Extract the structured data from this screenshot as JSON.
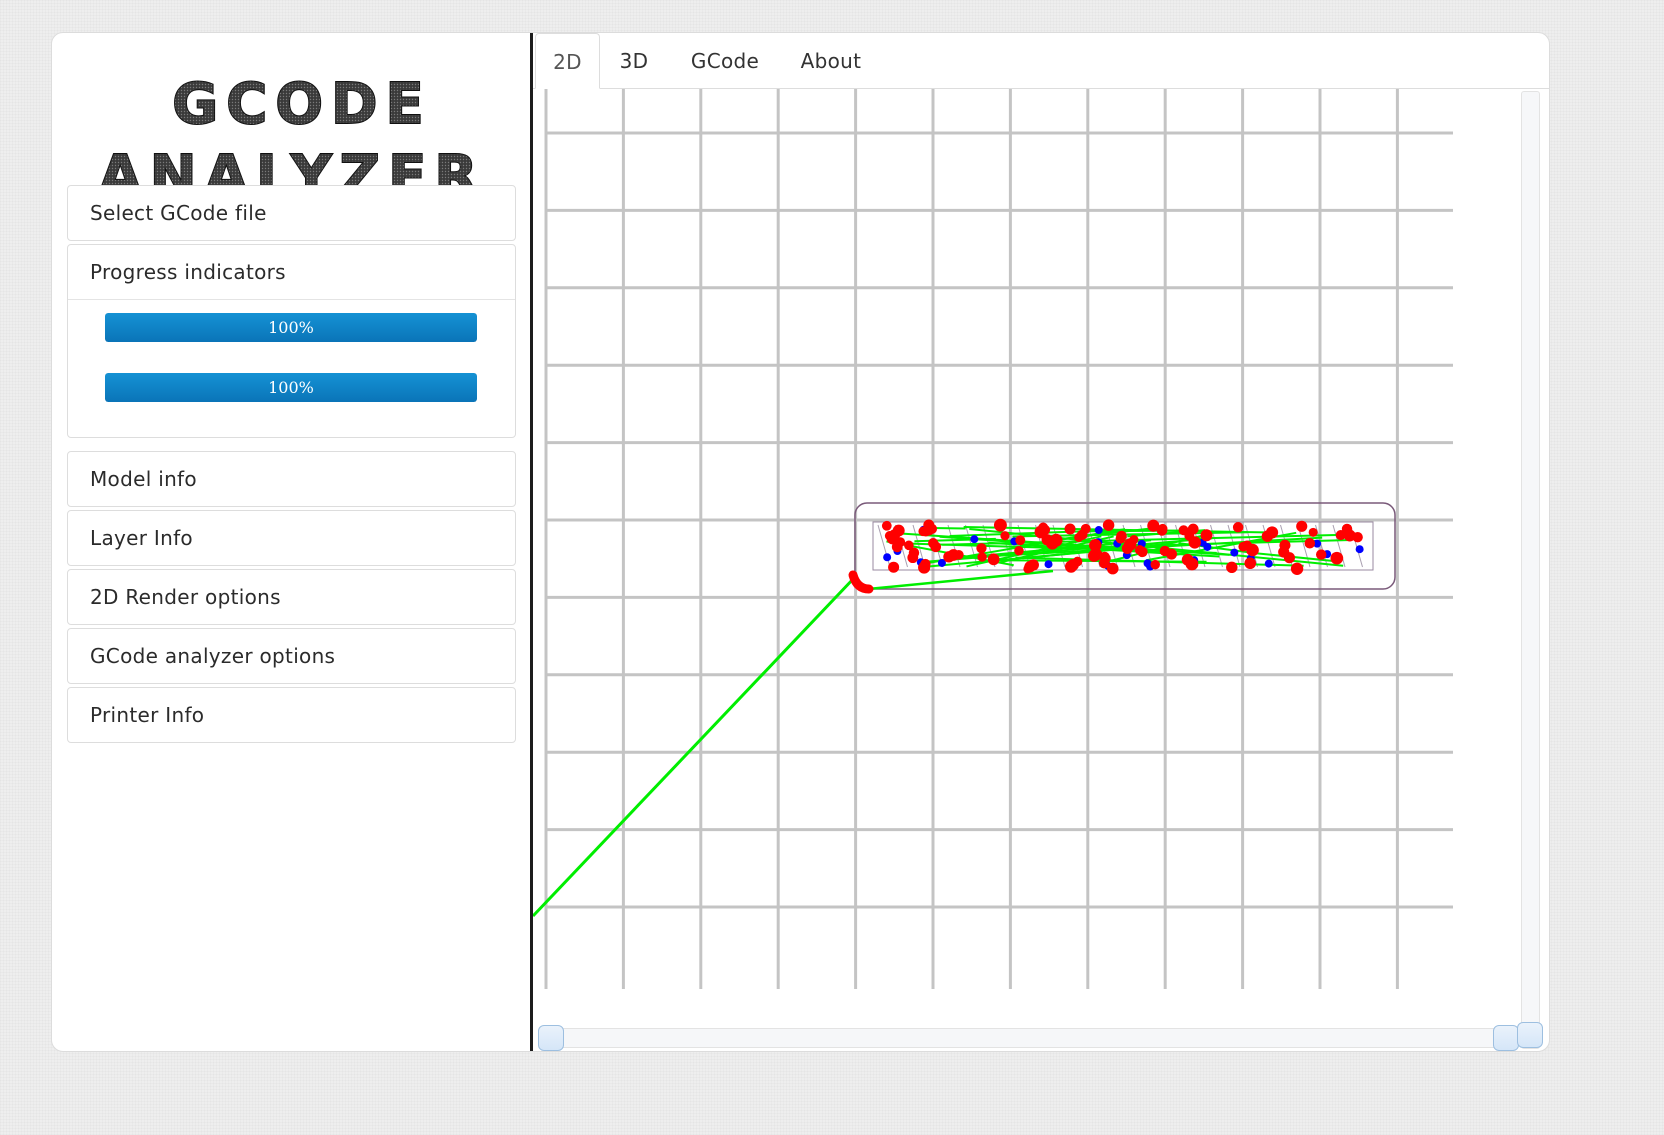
{
  "app": {
    "logo": {
      "line1": "GCODE",
      "line2": "ANALYZER"
    }
  },
  "sidebar": {
    "panels": [
      {
        "id": "select-file",
        "label": "Select GCode file"
      },
      {
        "id": "progress",
        "label": "Progress indicators"
      },
      {
        "id": "model-info",
        "label": "Model info"
      },
      {
        "id": "layer-info",
        "label": "Layer Info"
      },
      {
        "id": "render-options",
        "label": "2D Render options"
      },
      {
        "id": "analyzer-options",
        "label": "GCode analyzer options"
      },
      {
        "id": "printer-info",
        "label": "Printer Info"
      }
    ],
    "progress_bars": [
      {
        "label": "100%",
        "value": 100
      },
      {
        "label": "100%",
        "value": 100
      }
    ]
  },
  "tabs": [
    {
      "label": "2D",
      "active": true
    },
    {
      "label": "3D",
      "active": false
    },
    {
      "label": "GCode",
      "active": false
    },
    {
      "label": "About",
      "active": false
    }
  ],
  "render": {
    "grid_color": "#c4c4c4",
    "extrusion_color": "#ff0000",
    "travel_color": "#00ee00",
    "retract_color": "#0000ff",
    "outline_color": "#7a5a7a"
  },
  "sliders": {
    "horizontal": {
      "value_start": 0,
      "value_end": 100
    },
    "vertical": {
      "value": 0
    }
  }
}
